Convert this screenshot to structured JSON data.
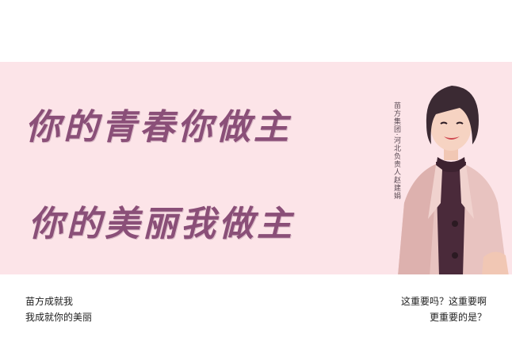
{
  "banner": {
    "slogan_line_1": "你的青春你做主",
    "slogan_line_2": "你的美丽我做主",
    "caption": "苗方集团·河北负责人赵建娟",
    "background_color": "#fce4e8",
    "slogan_color": "#8a4f78"
  },
  "footer": {
    "left_line_1": "苗方成就我",
    "left_line_2": "我成就你的美丽",
    "right_line_1": "这重要吗？这重要啊",
    "right_line_2": "更重要的是？"
  }
}
